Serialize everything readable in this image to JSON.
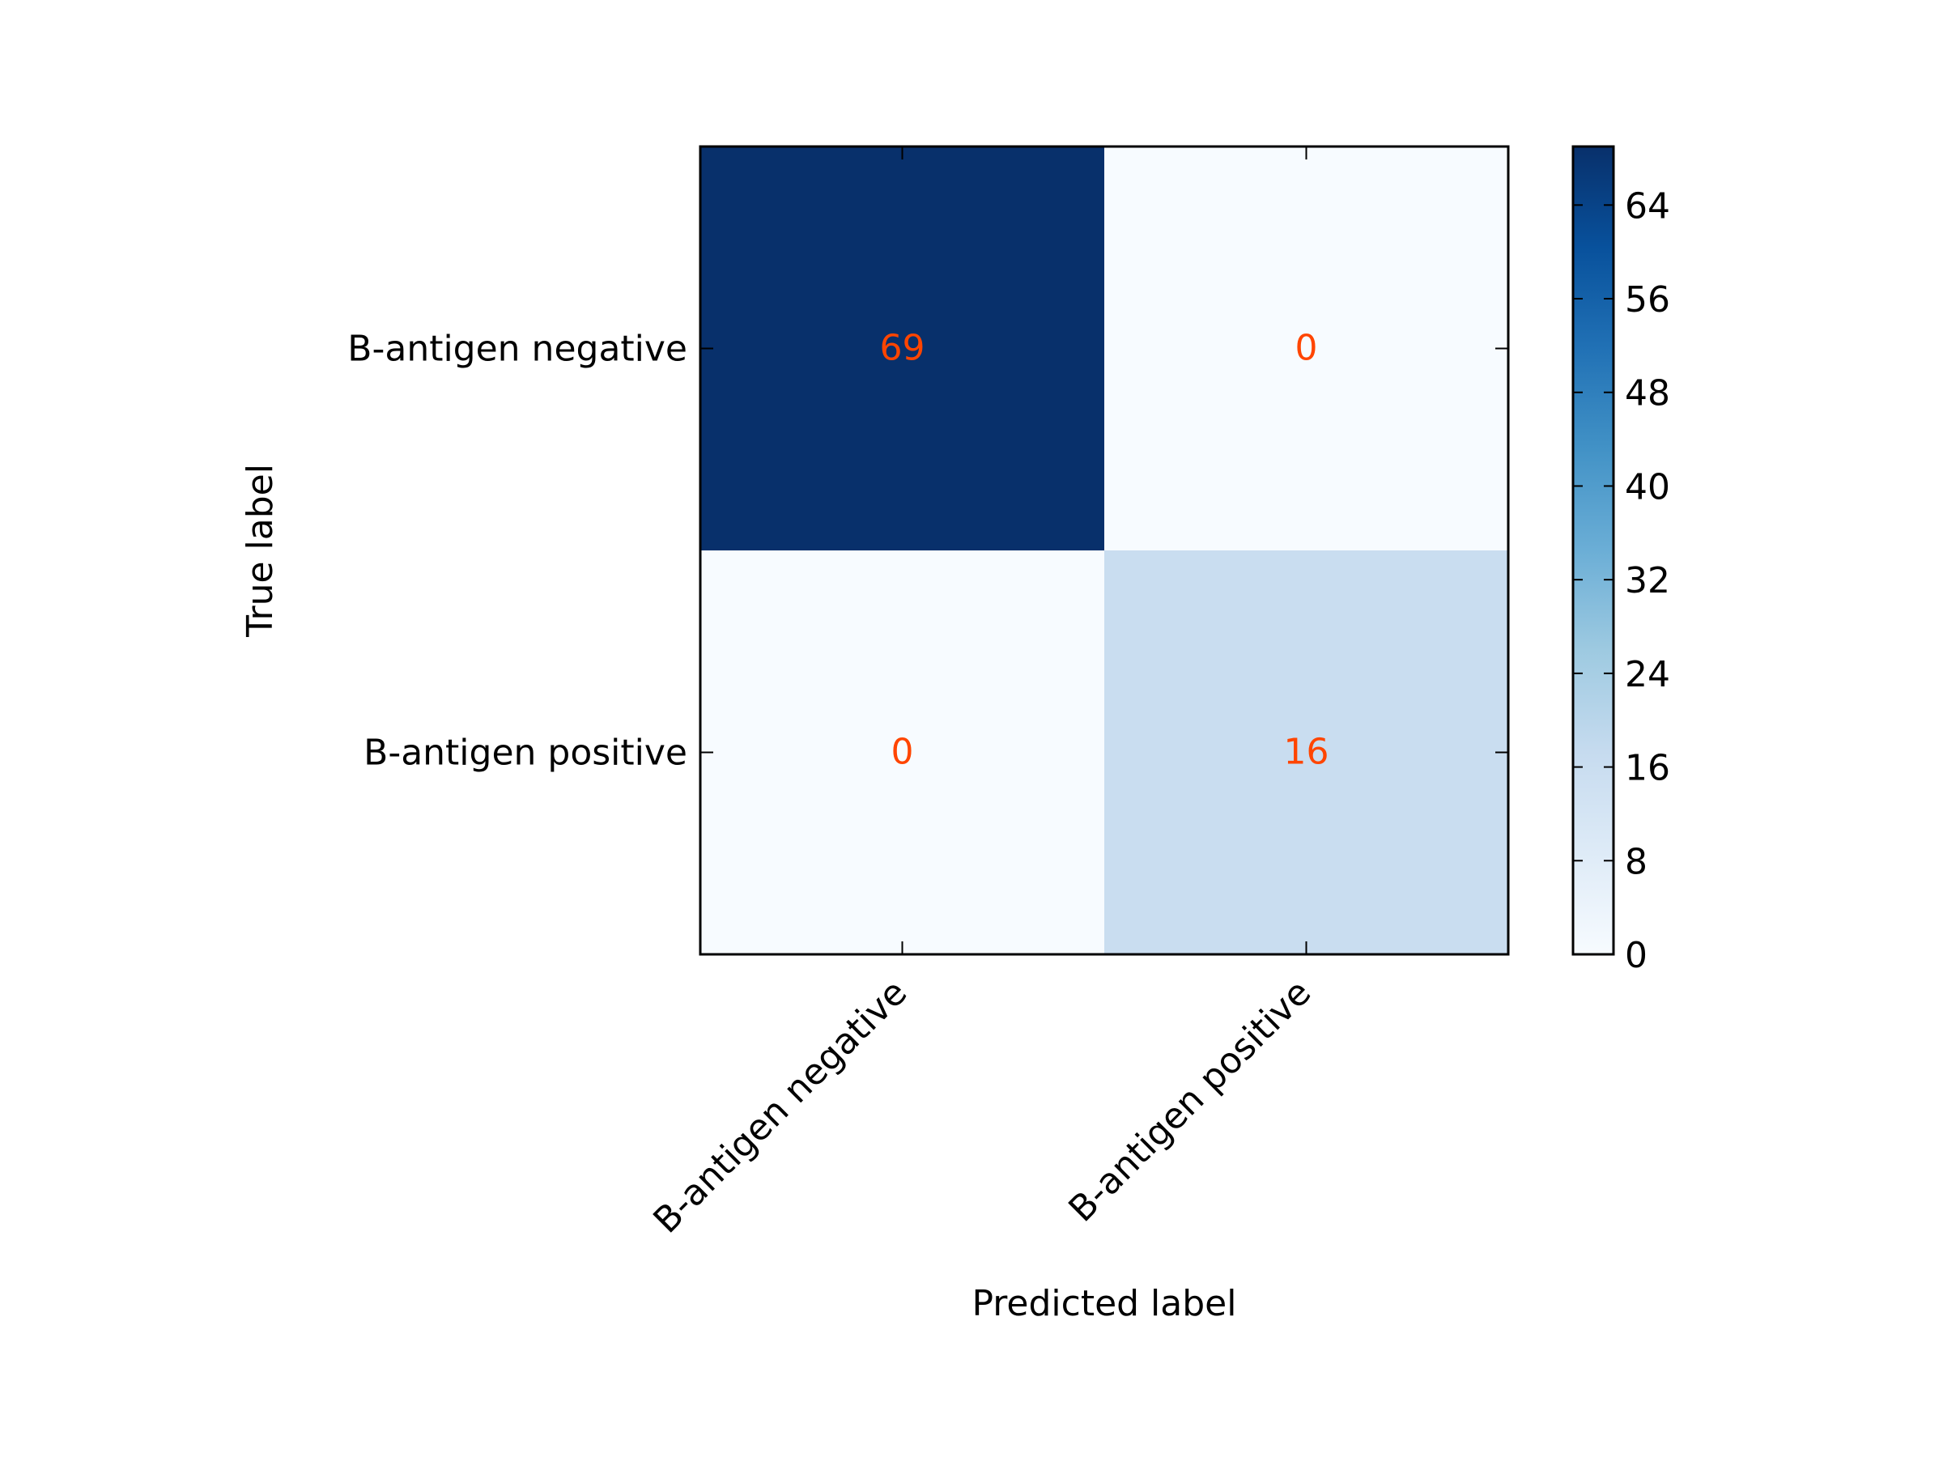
{
  "chart_data": {
    "type": "heatmap",
    "title": "",
    "xlabel": "Predicted label",
    "ylabel": "True label",
    "x_categories": [
      "B-antigen negative",
      "B-antigen positive"
    ],
    "y_categories": [
      "B-antigen negative",
      "B-antigen positive"
    ],
    "values": [
      [
        69,
        0
      ],
      [
        0,
        16
      ]
    ],
    "colormap": "Blues",
    "value_range": [
      0,
      69
    ],
    "colorbar_ticks": [
      0,
      8,
      16,
      24,
      32,
      40,
      48,
      56,
      64
    ],
    "annotation_color": "#ff4500",
    "grid": false
  }
}
